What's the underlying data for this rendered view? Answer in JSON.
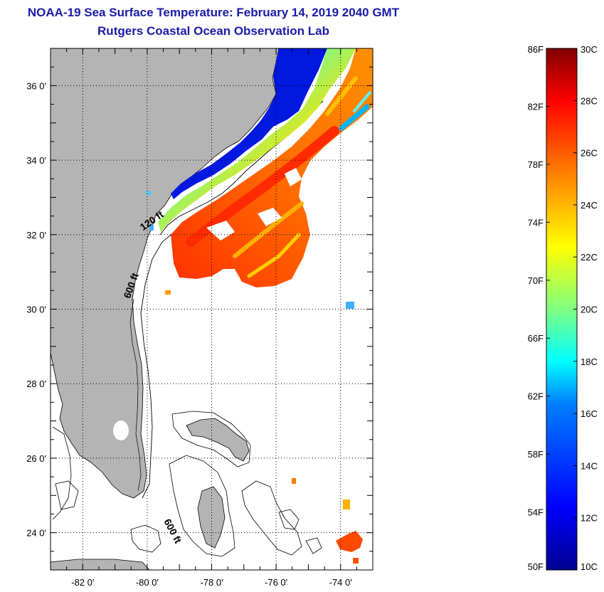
{
  "header": {
    "title": "NOAA-19 Sea Surface Temperature:  February 14, 2019 2040 GMT",
    "subtitle": "Rutgers Coastal Ocean Observation Lab"
  },
  "map": {
    "lon_range": [
      -83,
      -73
    ],
    "lat_range": [
      23,
      37
    ],
    "lon_ticks": [
      {
        "value": -82,
        "label": "-82 0'"
      },
      {
        "value": -80,
        "label": "-80 0'"
      },
      {
        "value": -78,
        "label": "-78 0'"
      },
      {
        "value": -76,
        "label": "-76 0'"
      },
      {
        "value": -74,
        "label": "-74 0'"
      }
    ],
    "lat_ticks": [
      {
        "value": 36,
        "label": "36 0'"
      },
      {
        "value": 34,
        "label": "34 0'"
      },
      {
        "value": 32,
        "label": "32 0'"
      },
      {
        "value": 30,
        "label": "30 0'"
      },
      {
        "value": 28,
        "label": "28 0'"
      },
      {
        "value": 26,
        "label": "26 0'"
      },
      {
        "value": 24,
        "label": "24 0'"
      }
    ],
    "contour_labels": [
      {
        "text": "120 ft",
        "lon": -79.8,
        "lat": 32.3
      },
      {
        "text": "600 ft",
        "lon": -80.4,
        "lat": 30.6
      },
      {
        "text": "600 ft",
        "lon": -79.3,
        "lat": 24.0
      }
    ],
    "colors": {
      "land": "#b4b4b4",
      "ocean": "#ffffff",
      "grid": "#000000"
    }
  },
  "colorbar": {
    "range_c": [
      10,
      30
    ],
    "fahrenheit_labels": [
      "86F",
      "82F",
      "78F",
      "74F",
      "70F",
      "66F",
      "62F",
      "58F",
      "54F",
      "50F"
    ],
    "celsius_labels": [
      "30C",
      "28C",
      "26C",
      "24C",
      "22C",
      "20C",
      "18C",
      "16C",
      "14C",
      "12C",
      "10C"
    ],
    "colormap": [
      "#00008f",
      "#0000ff",
      "#0080ff",
      "#00ffff",
      "#80ff80",
      "#ffff00",
      "#ff8000",
      "#ff0000",
      "#800000"
    ]
  }
}
